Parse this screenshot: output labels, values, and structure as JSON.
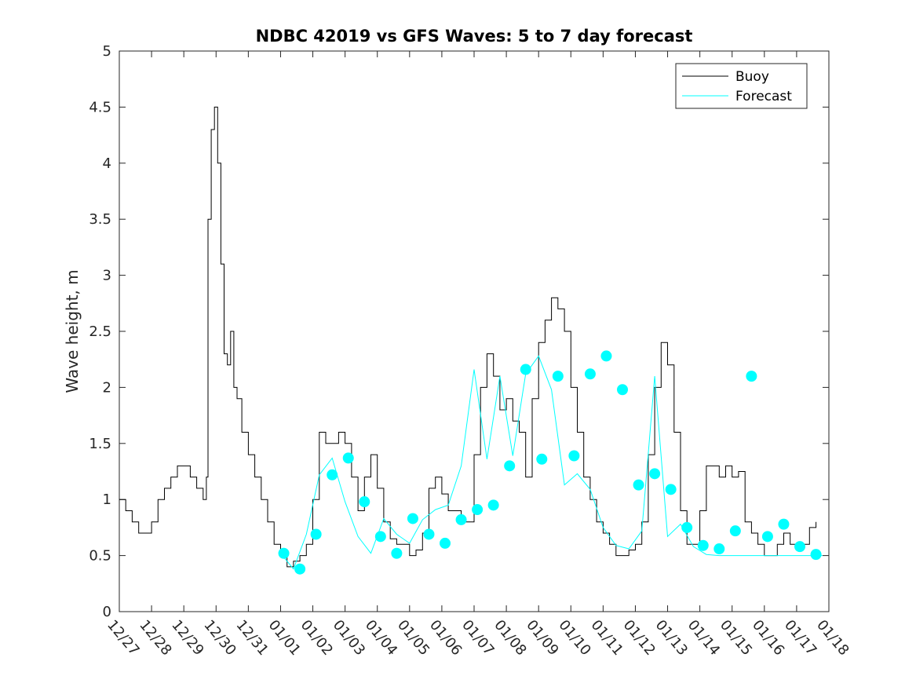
{
  "chart_data": {
    "type": "line",
    "title": "NDBC 42019 vs GFS Waves: 5 to 7 day forecast",
    "xlabel": "",
    "ylabel": "Wave height, m",
    "xlim": [
      0,
      22
    ],
    "ylim": [
      0,
      5
    ],
    "yticks": [
      0,
      0.5,
      1,
      1.5,
      2,
      2.5,
      3,
      3.5,
      4,
      4.5,
      5
    ],
    "ytick_labels": [
      "0",
      "0.5",
      "1",
      "1.5",
      "2",
      "2.5",
      "3",
      "3.5",
      "4",
      "4.5",
      "5"
    ],
    "xtick_labels": [
      "12/27",
      "12/28",
      "12/29",
      "12/30",
      "12/31",
      "01/01",
      "01/02",
      "01/03",
      "01/04",
      "01/05",
      "01/06",
      "01/07",
      "01/08",
      "01/09",
      "01/10",
      "01/11",
      "01/12",
      "01/13",
      "01/14",
      "01/15",
      "01/16",
      "01/17",
      "01/18"
    ],
    "legend": {
      "position": "top-right",
      "entries": [
        "Buoy",
        "Forecast"
      ]
    },
    "colors": {
      "buoy": "#000000",
      "forecast": "#00ffff"
    },
    "series": [
      {
        "name": "Buoy",
        "x": [
          0,
          0.2,
          0.4,
          0.6,
          0.8,
          1.0,
          1.2,
          1.4,
          1.6,
          1.8,
          2.0,
          2.2,
          2.4,
          2.6,
          2.7,
          2.75,
          2.85,
          2.95,
          3.05,
          3.15,
          3.25,
          3.35,
          3.45,
          3.55,
          3.65,
          3.8,
          4.0,
          4.2,
          4.4,
          4.6,
          4.8,
          5.0,
          5.2,
          5.4,
          5.6,
          5.8,
          6.0,
          6.2,
          6.4,
          6.6,
          6.8,
          7.0,
          7.2,
          7.4,
          7.6,
          7.8,
          8.0,
          8.2,
          8.4,
          8.6,
          8.8,
          9.0,
          9.2,
          9.4,
          9.6,
          9.8,
          10.0,
          10.2,
          10.4,
          10.6,
          10.8,
          11.0,
          11.2,
          11.4,
          11.6,
          11.8,
          12.0,
          12.2,
          12.4,
          12.6,
          12.8,
          13.0,
          13.2,
          13.4,
          13.6,
          13.8,
          14.0,
          14.2,
          14.4,
          14.6,
          14.8,
          15.0,
          15.2,
          15.4,
          15.6,
          15.8,
          16.0,
          16.2,
          16.4,
          16.6,
          16.8,
          17.0,
          17.2,
          17.4,
          17.6,
          17.8,
          18.0,
          18.2,
          18.4,
          18.6,
          18.8,
          19.0,
          19.2,
          19.4,
          19.6,
          19.8,
          20.0,
          20.2,
          20.4,
          20.6,
          20.8,
          21.0,
          21.2,
          21.4,
          21.6
        ],
        "y": [
          1.0,
          0.9,
          0.8,
          0.7,
          0.7,
          0.8,
          1.0,
          1.1,
          1.2,
          1.3,
          1.3,
          1.2,
          1.1,
          1.0,
          1.2,
          3.5,
          4.3,
          4.5,
          4.0,
          3.1,
          2.3,
          2.2,
          2.5,
          2.0,
          1.9,
          1.6,
          1.4,
          1.2,
          1.0,
          0.8,
          0.6,
          0.5,
          0.4,
          0.45,
          0.5,
          0.6,
          1.0,
          1.6,
          1.5,
          1.5,
          1.6,
          1.5,
          1.2,
          0.9,
          1.2,
          1.4,
          1.1,
          0.8,
          0.65,
          0.6,
          0.6,
          0.5,
          0.55,
          0.7,
          1.1,
          1.2,
          1.05,
          0.9,
          0.9,
          0.8,
          0.8,
          1.4,
          2.0,
          2.3,
          2.1,
          1.8,
          1.9,
          1.7,
          1.6,
          1.2,
          1.9,
          2.4,
          2.6,
          2.8,
          2.7,
          2.5,
          2.0,
          1.6,
          1.2,
          1.0,
          0.8,
          0.7,
          0.6,
          0.5,
          0.5,
          0.55,
          0.6,
          0.8,
          1.4,
          2.0,
          2.4,
          2.2,
          1.6,
          0.9,
          0.6,
          0.6,
          0.9,
          1.3,
          1.3,
          1.2,
          1.3,
          1.2,
          1.25,
          0.8,
          0.7,
          0.6,
          0.5,
          0.5,
          0.6,
          0.7,
          0.6,
          0.55,
          0.6,
          0.75,
          0.8
        ]
      },
      {
        "name": "Forecast",
        "x": [
          5.0,
          5.4,
          5.8,
          6.2,
          6.6,
          7.0,
          7.4,
          7.8,
          8.2,
          8.6,
          9.0,
          9.4,
          9.8,
          10.2,
          10.6,
          11.0,
          11.4,
          11.8,
          12.2,
          12.6,
          13.0,
          13.4,
          13.8,
          14.2,
          14.6,
          15.0,
          15.4,
          15.8,
          16.2,
          16.6,
          17.0,
          17.4,
          17.8,
          18.2,
          18.6,
          19.0,
          19.4,
          19.8,
          20.2,
          20.6,
          21.0,
          21.4,
          21.8
        ],
        "y": [
          0.52,
          0.38,
          0.69,
          1.22,
          1.37,
          0.98,
          0.67,
          0.52,
          0.83,
          0.69,
          0.61,
          0.82,
          0.91,
          0.95,
          1.3,
          2.16,
          1.36,
          2.1,
          1.39,
          2.12,
          2.28,
          1.98,
          1.13,
          1.23,
          1.09,
          0.75,
          0.59,
          0.56,
          0.72,
          2.1,
          0.67,
          0.78,
          0.58,
          0.51,
          0.5,
          0.5,
          0.5,
          0.5,
          0.5,
          0.5,
          0.5,
          0.5,
          0.5
        ],
        "marker_x": [
          5.1,
          5.6,
          6.1,
          6.6,
          7.1,
          7.6,
          8.1,
          8.6,
          9.1,
          9.6,
          10.1,
          10.6,
          11.1,
          11.6,
          12.1,
          12.6,
          13.1,
          13.6,
          14.1,
          14.6,
          15.1,
          15.6,
          16.1,
          16.6,
          17.1,
          17.6,
          18.1,
          18.6,
          19.1,
          19.6,
          20.1,
          20.6,
          21.1,
          21.6
        ],
        "marker_y": [
          0.52,
          0.38,
          0.69,
          1.22,
          1.37,
          0.98,
          0.67,
          0.52,
          0.83,
          0.69,
          0.61,
          0.82,
          0.91,
          0.95,
          1.3,
          2.16,
          1.36,
          2.1,
          1.39,
          2.12,
          2.28,
          1.98,
          1.13,
          1.23,
          1.09,
          0.75,
          0.59,
          0.56,
          0.72,
          2.1,
          0.67,
          0.78,
          0.58,
          0.51
        ]
      }
    ]
  }
}
